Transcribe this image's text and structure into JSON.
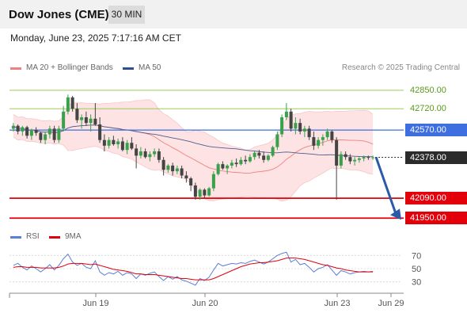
{
  "header": {
    "title": "Dow Jones (CME)",
    "timeframe": "30 MIN"
  },
  "datetime": "Monday, June 23, 2025 7:17:16 AM CET",
  "legend": {
    "bollinger": "MA 20 + Bollinger Bands",
    "ma50": "MA 50",
    "rsi": "RSI",
    "ma9": "9MA",
    "research": "Research © 2025 Trading Central"
  },
  "colors": {
    "up": "#39a04b",
    "down": "#444444",
    "resistance_green": "#8ec63f",
    "pivot_blue": "#3d6fe0",
    "support_red": "#e3000b",
    "current_dark": "#2b2b2b",
    "bollinger": "#f08080",
    "ma50": "#4a5f8f",
    "arrow": "#2b5aa8",
    "rsi_line": "#5a7fd6",
    "rsi_ma": "#e3000b"
  },
  "chart_data": [
    {
      "type": "candlestick",
      "title": "Dow Jones (CME) 30 MIN",
      "x_labels": [
        "Jun 19",
        "Jun 20",
        "Jun 23",
        "Jun 29"
      ],
      "ylim": [
        41890,
        42950
      ],
      "levels": [
        {
          "label": "42850.00",
          "value": 42850,
          "kind": "resistance"
        },
        {
          "label": "42720.00",
          "value": 42720,
          "kind": "resistance"
        },
        {
          "label": "42570.00",
          "value": 42570,
          "kind": "pivot"
        },
        {
          "label": "42378.00",
          "value": 42378,
          "kind": "current"
        },
        {
          "label": "42090.00",
          "value": 42090,
          "kind": "support"
        },
        {
          "label": "41950.00",
          "value": 41950,
          "kind": "support"
        }
      ],
      "series": [
        {
          "name": "MA 20 + Bollinger Bands",
          "type": "band"
        },
        {
          "name": "MA 50",
          "type": "line"
        }
      ],
      "candles": [
        [
          42580,
          42620,
          42560,
          42600
        ],
        [
          42600,
          42610,
          42540,
          42560
        ],
        [
          42560,
          42600,
          42530,
          42590
        ],
        [
          42590,
          42600,
          42510,
          42530
        ],
        [
          42530,
          42580,
          42500,
          42570
        ],
        [
          42570,
          42590,
          42530,
          42550
        ],
        [
          42550,
          42560,
          42480,
          42500
        ],
        [
          42500,
          42560,
          42470,
          42540
        ],
        [
          42540,
          42600,
          42510,
          42580
        ],
        [
          42580,
          42600,
          42480,
          42500
        ],
        [
          42500,
          42600,
          42480,
          42580
        ],
        [
          42580,
          42740,
          42560,
          42700
        ],
        [
          42700,
          42820,
          42680,
          42800
        ],
        [
          42800,
          42810,
          42700,
          42720
        ],
        [
          42720,
          42760,
          42620,
          42640
        ],
        [
          42640,
          42680,
          42580,
          42660
        ],
        [
          42660,
          42700,
          42600,
          42620
        ],
        [
          42620,
          42680,
          42560,
          42650
        ],
        [
          42650,
          42760,
          42600,
          42610
        ],
        [
          42610,
          42660,
          42480,
          42500
        ],
        [
          42500,
          42540,
          42420,
          42460
        ],
        [
          42460,
          42520,
          42440,
          42500
        ],
        [
          42500,
          42530,
          42460,
          42470
        ],
        [
          42470,
          42510,
          42440,
          42490
        ],
        [
          42490,
          42520,
          42420,
          42430
        ],
        [
          42430,
          42500,
          42400,
          42480
        ],
        [
          42480,
          42520,
          42430,
          42440
        ],
        [
          42440,
          42470,
          42300,
          42390
        ],
        [
          42390,
          42450,
          42370,
          42420
        ],
        [
          42420,
          42440,
          42370,
          42380
        ],
        [
          42380,
          42420,
          42350,
          42400
        ],
        [
          42400,
          42440,
          42380,
          42420
        ],
        [
          42420,
          42440,
          42340,
          42360
        ],
        [
          42360,
          42380,
          42250,
          42290
        ],
        [
          42290,
          42330,
          42270,
          42320
        ],
        [
          42320,
          42340,
          42250,
          42280
        ],
        [
          42280,
          42320,
          42260,
          42300
        ],
        [
          42300,
          42320,
          42230,
          42250
        ],
        [
          42250,
          42280,
          42200,
          42230
        ],
        [
          42230,
          42240,
          42140,
          42180
        ],
        [
          42180,
          42200,
          42080,
          42100
        ],
        [
          42100,
          42160,
          42080,
          42150
        ],
        [
          42150,
          42160,
          42090,
          42110
        ],
        [
          42110,
          42170,
          42100,
          42160
        ],
        [
          42160,
          42280,
          42140,
          42260
        ],
        [
          42260,
          42340,
          42250,
          42330
        ],
        [
          42330,
          42350,
          42290,
          42300
        ],
        [
          42300,
          42330,
          42260,
          42320
        ],
        [
          42320,
          42360,
          42300,
          42340
        ],
        [
          42340,
          42370,
          42310,
          42330
        ],
        [
          42330,
          42380,
          42320,
          42360
        ],
        [
          42360,
          42390,
          42330,
          42350
        ],
        [
          42350,
          42400,
          42340,
          42380
        ],
        [
          42380,
          42420,
          42360,
          42410
        ],
        [
          42410,
          42430,
          42370,
          42390
        ],
        [
          42390,
          42420,
          42340,
          42360
        ],
        [
          42360,
          42400,
          42350,
          42390
        ],
        [
          42390,
          42460,
          42380,
          42450
        ],
        [
          42450,
          42560,
          42430,
          42540
        ],
        [
          42540,
          42680,
          42520,
          42660
        ],
        [
          42660,
          42760,
          42640,
          42700
        ],
        [
          42700,
          42720,
          42560,
          42580
        ],
        [
          42580,
          42660,
          42540,
          42620
        ],
        [
          42620,
          42650,
          42540,
          42560
        ],
        [
          42560,
          42600,
          42520,
          42580
        ],
        [
          42580,
          42600,
          42500,
          42520
        ],
        [
          42520,
          42560,
          42430,
          42460
        ],
        [
          42460,
          42520,
          42440,
          42500
        ],
        [
          42500,
          42540,
          42460,
          42520
        ],
        [
          42520,
          42580,
          42500,
          42560
        ],
        [
          42560,
          42570,
          42480,
          42500
        ],
        [
          42500,
          42520,
          42080,
          42320
        ],
        [
          42320,
          42420,
          42300,
          42400
        ],
        [
          42400,
          42420,
          42360,
          42380
        ],
        [
          42380,
          42400,
          42330,
          42350
        ],
        [
          42350,
          42380,
          42320,
          42360
        ],
        [
          42360,
          42380,
          42340,
          42370
        ],
        [
          42370,
          42390,
          42350,
          42380
        ],
        [
          42380,
          42390,
          42360,
          42375
        ],
        [
          42375,
          42390,
          42360,
          42378
        ]
      ]
    },
    {
      "type": "line",
      "title": "RSI",
      "ylim": [
        20,
        80
      ],
      "yticks": [
        70,
        50,
        30
      ],
      "series": [
        {
          "name": "RSI",
          "values": [
            55,
            58,
            52,
            48,
            54,
            50,
            45,
            50,
            56,
            48,
            55,
            65,
            72,
            60,
            55,
            58,
            52,
            50,
            62,
            45,
            40,
            44,
            42,
            46,
            40,
            44,
            42,
            35,
            42,
            40,
            43,
            45,
            38,
            32,
            38,
            34,
            38,
            33,
            31,
            28,
            25,
            35,
            32,
            37,
            48,
            58,
            54,
            56,
            58,
            57,
            59,
            58,
            61,
            63,
            60,
            57,
            60,
            65,
            70,
            73,
            75,
            60,
            64,
            56,
            58,
            52,
            45,
            50,
            52,
            56,
            48,
            40,
            47,
            45,
            42,
            44,
            45,
            46,
            45,
            46
          ]
        },
        {
          "name": "9MA",
          "values": [
            52,
            53,
            53,
            52,
            52,
            52,
            51,
            51,
            51,
            51,
            52,
            54,
            57,
            58,
            58,
            58,
            57,
            56,
            57,
            55,
            53,
            51,
            49,
            48,
            47,
            46,
            44,
            42,
            42,
            41,
            41,
            41,
            40,
            39,
            38,
            37,
            36,
            35,
            35,
            34,
            33,
            33,
            33,
            33,
            35,
            38,
            41,
            44,
            47,
            50,
            53,
            55,
            57,
            58,
            59,
            59,
            60,
            61,
            62,
            64,
            66,
            66,
            66,
            65,
            64,
            62,
            60,
            58,
            56,
            55,
            53,
            51,
            50,
            48,
            47,
            46,
            45,
            45,
            45,
            45
          ]
        }
      ]
    }
  ]
}
